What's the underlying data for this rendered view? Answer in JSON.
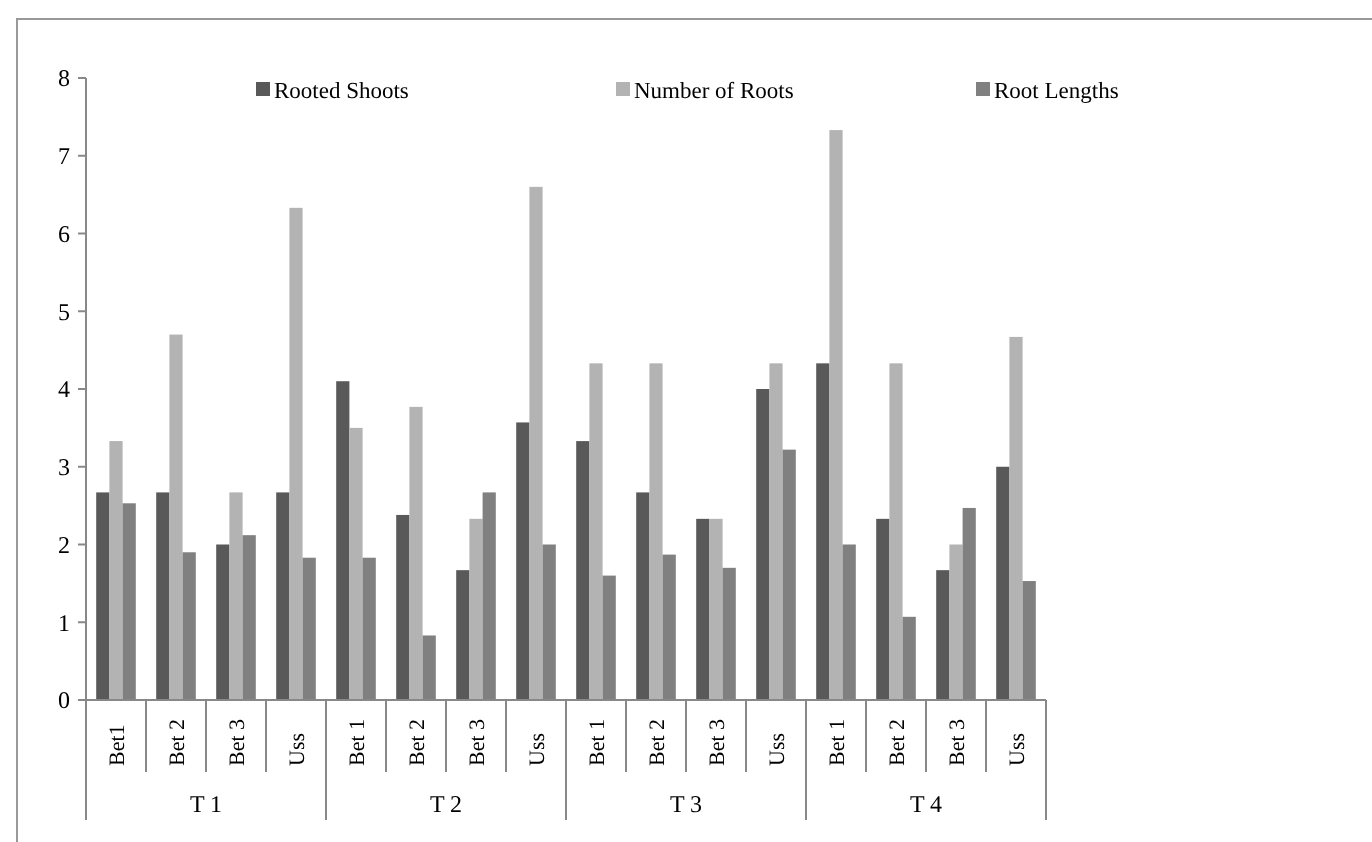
{
  "chart_data": {
    "type": "bar",
    "categories": [
      "Bet1",
      "Bet 2",
      "Bet 3",
      "Uss",
      "Bet 1",
      "Bet 2",
      "Bet 3",
      "Uss",
      "Bet 1",
      "Bet 2",
      "Bet 3",
      "Uss",
      "Bet 1",
      "Bet 2",
      "Bet 3",
      "Uss"
    ],
    "series": [
      {
        "name": "Rooted Shoots",
        "color": "#595959",
        "values": [
          2.67,
          2.67,
          2.0,
          2.67,
          4.1,
          2.38,
          1.67,
          3.57,
          3.33,
          2.67,
          2.33,
          4.0,
          4.33,
          2.33,
          1.67,
          3.0
        ]
      },
      {
        "name": "Number of Roots",
        "color": "#b3b3b3",
        "values": [
          3.33,
          4.7,
          2.67,
          6.33,
          3.5,
          3.77,
          2.33,
          6.6,
          4.33,
          4.33,
          2.33,
          4.33,
          7.33,
          4.33,
          2.0,
          4.67
        ]
      },
      {
        "name": "Root Lengths",
        "color": "#808080",
        "values": [
          2.53,
          1.9,
          2.12,
          1.83,
          1.83,
          0.83,
          2.67,
          2.0,
          1.6,
          1.87,
          1.7,
          3.22,
          2.0,
          1.07,
          2.47,
          1.53
        ]
      }
    ],
    "annotations": [
      "T 1",
      "T 2",
      "T 3",
      "T 4"
    ],
    "ylim": [
      0,
      8
    ],
    "yticks": [
      0,
      1,
      2,
      3,
      4,
      5,
      6,
      7,
      8
    ],
    "grid": false,
    "legend": "top"
  }
}
